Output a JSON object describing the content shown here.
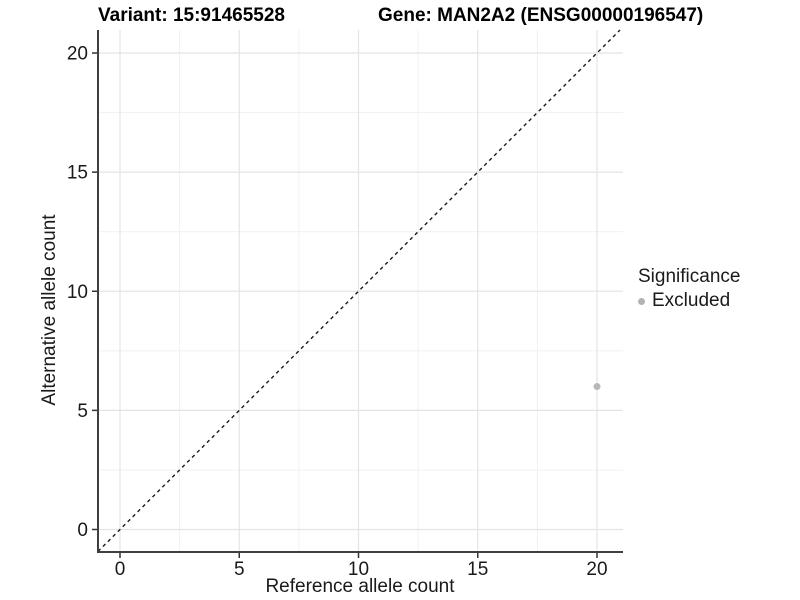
{
  "header": {
    "variant_title": "Variant: 15:91465528",
    "gene_title": "Gene: MAN2A2 (ENSG00000196547)"
  },
  "chart_data": {
    "type": "scatter",
    "xlabel": "Reference allele count",
    "ylabel": "Alternative allele count",
    "x_ticks": [
      0,
      5,
      10,
      15,
      20
    ],
    "y_ticks": [
      0,
      5,
      10,
      15,
      20
    ],
    "xlim": [
      -0.92,
      21.09
    ],
    "ylim": [
      -0.94,
      20.97
    ],
    "grid": "major and minor, light gray, on white background",
    "points": [
      {
        "x": 20,
        "y": 6,
        "series": "Excluded"
      }
    ],
    "identity_line": {
      "slope": 1,
      "intercept": 0,
      "style": "dashed",
      "color": "#1a1a1a"
    },
    "legend": {
      "title": "Significance",
      "position": "right",
      "entries": [
        {
          "label": "Excluded",
          "color": "#b8b8b8"
        }
      ]
    },
    "colors": {
      "point": "#b8b8b8",
      "grid_major": "#e4e4e4",
      "grid_minor": "#f1f1f1",
      "axis_line": "#3f3f3f",
      "tick": "#333333",
      "text": "#1a1a1a"
    }
  }
}
